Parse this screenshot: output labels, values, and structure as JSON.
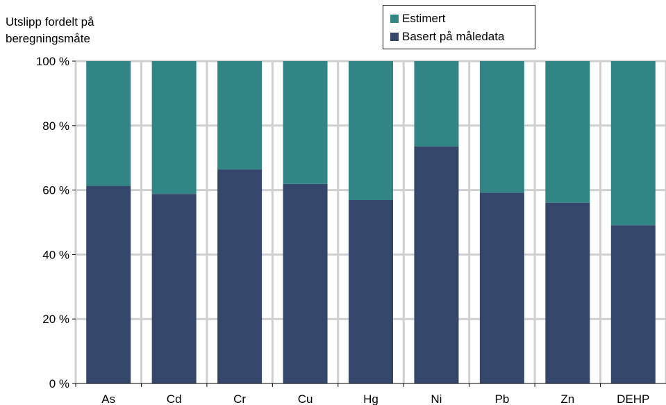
{
  "chart_data": {
    "type": "bar",
    "stacked": true,
    "ylabel": "Utslipp fordelt på beregningsmåte",
    "ylabel_lines": [
      "Utslipp fordelt på",
      "beregningsmåte"
    ],
    "categories": [
      "As",
      "Cd",
      "Cr",
      "Cu",
      "Hg",
      "Ni",
      "Pb",
      "Zn",
      "DEHP"
    ],
    "series": [
      {
        "name": "Basert på måledata",
        "color": "#34466a",
        "values": [
          61.3,
          58.8,
          66.4,
          61.9,
          56.9,
          73.5,
          59.2,
          56.1,
          49.1
        ]
      },
      {
        "name": "Estimert",
        "color": "#328585",
        "values": [
          38.7,
          41.2,
          33.6,
          38.1,
          43.1,
          26.5,
          40.8,
          43.9,
          50.9
        ]
      }
    ],
    "ylim": [
      0,
      100
    ],
    "yticks": [
      0,
      20,
      40,
      60,
      80,
      100
    ],
    "ytick_labels": [
      "0 %",
      "20 %",
      "40 %",
      "60 %",
      "80 %",
      "100 %"
    ],
    "grid": true,
    "legend_position": "top-center",
    "legend_order": [
      "Estimert",
      "Basert på måledata"
    ]
  }
}
